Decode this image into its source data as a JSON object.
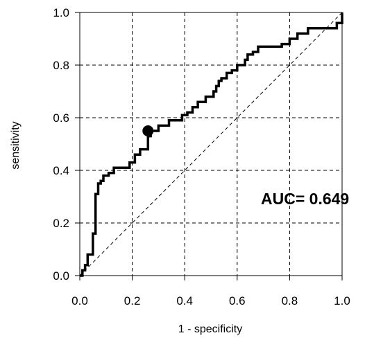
{
  "chart_data": {
    "type": "line",
    "title": "",
    "xlabel": "1 - specificity",
    "ylabel": "sensitivity",
    "xlim": [
      0,
      1
    ],
    "ylim": [
      0,
      1
    ],
    "grid": true,
    "x_ticks": [
      "0.0",
      "0.2",
      "0.4",
      "0.6",
      "0.8",
      "1.0"
    ],
    "y_ticks": [
      "0.0",
      "0.2",
      "0.4",
      "0.6",
      "0.8",
      "1.0"
    ],
    "annotation": {
      "text": "AUC= 0.649"
    },
    "reference_line": {
      "from": [
        0,
        0
      ],
      "to": [
        1,
        1
      ],
      "style": "dashed"
    },
    "highlight_point": {
      "x": 0.26,
      "y": 0.55
    },
    "series": [
      {
        "x": [
          0,
          0.01,
          0.01,
          0.02,
          0.02,
          0.03,
          0.03,
          0.05,
          0.05,
          0.06,
          0.06,
          0.07,
          0.07,
          0.08,
          0.08,
          0.09,
          0.09,
          0.11,
          0.11,
          0.13,
          0.13,
          0.19,
          0.19,
          0.21,
          0.21,
          0.23,
          0.23,
          0.26,
          0.26,
          0.27,
          0.27,
          0.3,
          0.3,
          0.34,
          0.34,
          0.39,
          0.39,
          0.41,
          0.41,
          0.43,
          0.43,
          0.45,
          0.45,
          0.48,
          0.48,
          0.51,
          0.51,
          0.52,
          0.52,
          0.53,
          0.53,
          0.54,
          0.54,
          0.56,
          0.56,
          0.58,
          0.58,
          0.6,
          0.6,
          0.63,
          0.63,
          0.64,
          0.64,
          0.66,
          0.66,
          0.68,
          0.68,
          0.77,
          0.77,
          0.8,
          0.8,
          0.83,
          0.83,
          0.87,
          0.87,
          0.98,
          0.98,
          1,
          1
        ],
        "y": [
          0,
          0,
          0.02,
          0.02,
          0.04,
          0.04,
          0.08,
          0.08,
          0.16,
          0.16,
          0.31,
          0.31,
          0.35,
          0.35,
          0.36,
          0.36,
          0.38,
          0.38,
          0.39,
          0.39,
          0.41,
          0.41,
          0.43,
          0.43,
          0.46,
          0.46,
          0.48,
          0.48,
          0.53,
          0.53,
          0.55,
          0.55,
          0.57,
          0.57,
          0.59,
          0.59,
          0.61,
          0.61,
          0.62,
          0.62,
          0.64,
          0.64,
          0.66,
          0.66,
          0.68,
          0.68,
          0.7,
          0.7,
          0.72,
          0.72,
          0.74,
          0.74,
          0.75,
          0.75,
          0.77,
          0.77,
          0.78,
          0.78,
          0.8,
          0.8,
          0.82,
          0.82,
          0.84,
          0.84,
          0.85,
          0.85,
          0.87,
          0.87,
          0.88,
          0.88,
          0.9,
          0.9,
          0.92,
          0.92,
          0.94,
          0.94,
          0.96,
          0.96,
          1
        ]
      }
    ]
  }
}
